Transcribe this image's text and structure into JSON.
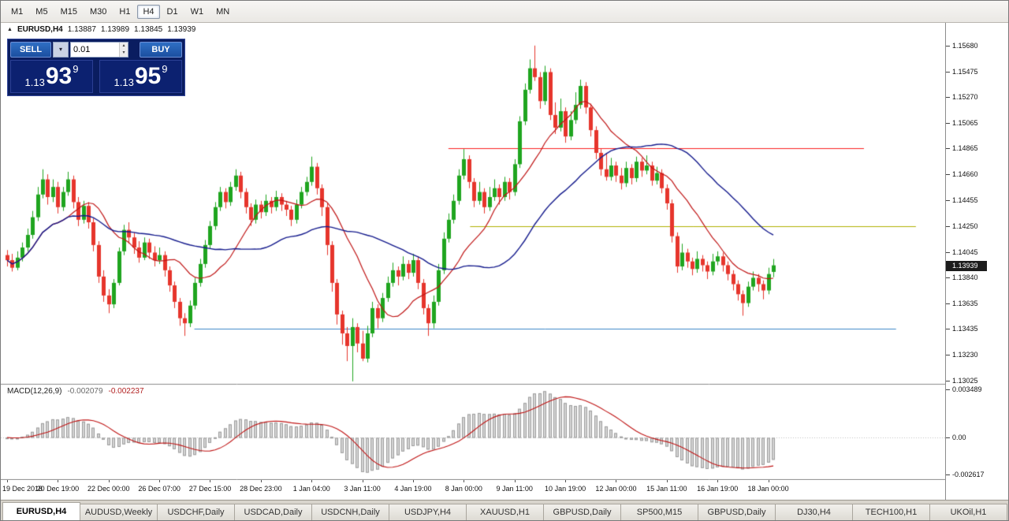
{
  "toolbar": {
    "timeframes": [
      {
        "label": "M1",
        "active": false
      },
      {
        "label": "M5",
        "active": false
      },
      {
        "label": "M15",
        "active": false
      },
      {
        "label": "M30",
        "active": false
      },
      {
        "label": "H1",
        "active": false
      },
      {
        "label": "H4",
        "active": true
      },
      {
        "label": "D1",
        "active": false
      },
      {
        "label": "W1",
        "active": false
      },
      {
        "label": "MN",
        "active": false
      }
    ]
  },
  "header": {
    "symbol": "EURUSD,H4",
    "open": "1.13887",
    "high": "1.13989",
    "low": "1.13845",
    "close": "1.13939"
  },
  "trade_panel": {
    "sell_label": "SELL",
    "buy_label": "BUY",
    "lot_size": "0.01",
    "sell_price": {
      "prefix": "1.13",
      "big": "93",
      "sup": "9"
    },
    "buy_price": {
      "prefix": "1.13",
      "big": "95",
      "sup": "9"
    }
  },
  "price_axis": {
    "labels": [
      "1.15680",
      "1.15475",
      "1.15270",
      "1.15065",
      "1.14865",
      "1.14660",
      "1.14455",
      "1.14250",
      "1.14045",
      "1.13840",
      "1.13635",
      "1.13435",
      "1.13230",
      "1.13025"
    ],
    "current_price": "1.13939"
  },
  "macd_panel": {
    "label": "MACD(12,26,9)",
    "value1": "-0.002079",
    "value2": "-0.002237",
    "scale_top": "0.003489",
    "scale_zero": "0.00",
    "scale_bottom": "-0.002617"
  },
  "time_axis": {
    "labels": [
      {
        "text": "19 Dec 2018",
        "index": 0
      },
      {
        "text": "20 Dec 19:00",
        "index": 10
      },
      {
        "text": "22 Dec 00:00",
        "index": 20
      },
      {
        "text": "26 Dec 07:00",
        "index": 30
      },
      {
        "text": "27 Dec 15:00",
        "index": 40
      },
      {
        "text": "28 Dec 23:00",
        "index": 50
      },
      {
        "text": "1 Jan 04:00",
        "index": 60
      },
      {
        "text": "3 Jan 11:00",
        "index": 70
      },
      {
        "text": "4 Jan 19:00",
        "index": 80
      },
      {
        "text": "8 Jan 00:00",
        "index": 90
      },
      {
        "text": "9 Jan 11:00",
        "index": 100
      },
      {
        "text": "10 Jan 19:00",
        "index": 110
      },
      {
        "text": "12 Jan 00:00",
        "index": 120
      },
      {
        "text": "15 Jan 11:00",
        "index": 130
      },
      {
        "text": "16 Jan 19:00",
        "index": 140
      },
      {
        "text": "18 Jan 00:00",
        "index": 150
      }
    ]
  },
  "tabs": [
    {
      "label": "EURUSD,H4",
      "active": true
    },
    {
      "label": "AUDUSD,Weekly",
      "active": false
    },
    {
      "label": "USDCHF,Daily",
      "active": false
    },
    {
      "label": "USDCAD,Daily",
      "active": false
    },
    {
      "label": "USDCNH,Daily",
      "active": false
    },
    {
      "label": "USDJPY,H4",
      "active": false
    },
    {
      "label": "XAUUSD,H1",
      "active": false
    },
    {
      "label": "GBPUSD,Daily",
      "active": false
    },
    {
      "label": "SP500,M15",
      "active": false
    },
    {
      "label": "GBPUSD,Daily",
      "active": false
    },
    {
      "label": "DJ30,H4",
      "active": false
    },
    {
      "label": "TECH100,H1",
      "active": false
    },
    {
      "label": "UKOil,H1",
      "active": false
    }
  ],
  "chart_data": {
    "type": "candlestick",
    "symbol": "EURUSD",
    "timeframe": "H4",
    "price_range": [
      1.13,
      1.1586
    ],
    "colors": {
      "bull": "#1FA51F",
      "bear": "#E6352C",
      "background": "#FFFFFF"
    },
    "overlays": {
      "ma_fast": {
        "type": "sma",
        "period": 13,
        "color": "#C01515"
      },
      "ma_slow": {
        "type": "sma",
        "period": 34,
        "color": "#151B8D"
      },
      "hlines": [
        {
          "price": 1.14865,
          "color": "#FB2020",
          "x1_frac": 0.474,
          "x2_frac": 0.914
        },
        {
          "price": 1.1425,
          "color": "#AFAF00",
          "x1_frac": 0.497,
          "x2_frac": 0.969
        },
        {
          "price": 1.13435,
          "color": "#3A86C8",
          "x1_frac": 0.205,
          "x2_frac": 0.948
        }
      ]
    },
    "indicator": {
      "type": "macd",
      "fast": 12,
      "slow": 26,
      "signal": 9,
      "histogram_fill": "#D6D6D6",
      "histogram_stroke": "#9C9C9C",
      "signal_color": "#C01515"
    },
    "candles": [
      [
        1.1402,
        1.1406,
        1.1393,
        1.1398
      ],
      [
        1.1398,
        1.1403,
        1.1389,
        1.1392
      ],
      [
        1.1392,
        1.1405,
        1.139,
        1.14
      ],
      [
        1.14,
        1.1412,
        1.1397,
        1.1408
      ],
      [
        1.1408,
        1.1423,
        1.1405,
        1.1418
      ],
      [
        1.1418,
        1.1437,
        1.1415,
        1.1432
      ],
      [
        1.1432,
        1.1456,
        1.1429,
        1.145
      ],
      [
        1.145,
        1.147,
        1.1447,
        1.1462
      ],
      [
        1.1462,
        1.1466,
        1.1442,
        1.1448
      ],
      [
        1.1448,
        1.1462,
        1.1444,
        1.1456
      ],
      [
        1.1456,
        1.146,
        1.1435,
        1.144
      ],
      [
        1.144,
        1.1456,
        1.1437,
        1.1452
      ],
      [
        1.1452,
        1.1468,
        1.1449,
        1.1462
      ],
      [
        1.1462,
        1.1465,
        1.1439,
        1.1444
      ],
      [
        1.1444,
        1.1448,
        1.1425,
        1.143
      ],
      [
        1.143,
        1.1445,
        1.1427,
        1.1441
      ],
      [
        1.1441,
        1.1444,
        1.1423,
        1.1428
      ],
      [
        1.1428,
        1.1431,
        1.1405,
        1.141
      ],
      [
        1.141,
        1.1413,
        1.138,
        1.1385
      ],
      [
        1.1385,
        1.139,
        1.1365,
        1.137
      ],
      [
        1.137,
        1.1375,
        1.1356,
        1.1363
      ],
      [
        1.1363,
        1.1383,
        1.136,
        1.138
      ],
      [
        1.138,
        1.1408,
        1.1378,
        1.1405
      ],
      [
        1.1405,
        1.1426,
        1.1402,
        1.1422
      ],
      [
        1.1422,
        1.1428,
        1.1411,
        1.1416
      ],
      [
        1.1416,
        1.142,
        1.1403,
        1.1408
      ],
      [
        1.1408,
        1.1413,
        1.1396,
        1.14
      ],
      [
        1.14,
        1.1416,
        1.1398,
        1.1412
      ],
      [
        1.1412,
        1.1415,
        1.1399,
        1.1404
      ],
      [
        1.1404,
        1.1409,
        1.1393,
        1.1398
      ],
      [
        1.1398,
        1.1408,
        1.1395,
        1.1402
      ],
      [
        1.1402,
        1.1405,
        1.1385,
        1.139
      ],
      [
        1.139,
        1.1393,
        1.1373,
        1.1378
      ],
      [
        1.1378,
        1.1381,
        1.136,
        1.1365
      ],
      [
        1.1365,
        1.1368,
        1.1346,
        1.1352
      ],
      [
        1.1352,
        1.1356,
        1.1338,
        1.1348
      ],
      [
        1.1348,
        1.1366,
        1.1345,
        1.1362
      ],
      [
        1.1362,
        1.1384,
        1.1359,
        1.138
      ],
      [
        1.138,
        1.1399,
        1.1377,
        1.1395
      ],
      [
        1.1395,
        1.1414,
        1.1392,
        1.141
      ],
      [
        1.141,
        1.1429,
        1.1407,
        1.1425
      ],
      [
        1.1425,
        1.1444,
        1.1422,
        1.144
      ],
      [
        1.144,
        1.1456,
        1.1437,
        1.1452
      ],
      [
        1.1452,
        1.1455,
        1.1439,
        1.1444
      ],
      [
        1.1444,
        1.146,
        1.1441,
        1.1456
      ],
      [
        1.1456,
        1.147,
        1.1453,
        1.1465
      ],
      [
        1.1465,
        1.1468,
        1.1447,
        1.1452
      ],
      [
        1.1452,
        1.1455,
        1.1435,
        1.144
      ],
      [
        1.144,
        1.1443,
        1.1425,
        1.143
      ],
      [
        1.143,
        1.1446,
        1.1427,
        1.1442
      ],
      [
        1.1442,
        1.1445,
        1.1431,
        1.1436
      ],
      [
        1.1436,
        1.145,
        1.1433,
        1.1445
      ],
      [
        1.1445,
        1.1448,
        1.1435,
        1.144
      ],
      [
        1.144,
        1.1453,
        1.1437,
        1.1448
      ],
      [
        1.1448,
        1.1451,
        1.1437,
        1.1442
      ],
      [
        1.1442,
        1.1445,
        1.1433,
        1.1438
      ],
      [
        1.1438,
        1.1441,
        1.1425,
        1.143
      ],
      [
        1.143,
        1.1446,
        1.1427,
        1.1442
      ],
      [
        1.1442,
        1.1456,
        1.1439,
        1.1452
      ],
      [
        1.1452,
        1.1464,
        1.1449,
        1.146
      ],
      [
        1.146,
        1.148,
        1.1457,
        1.1472
      ],
      [
        1.1472,
        1.1475,
        1.145,
        1.1455
      ],
      [
        1.1455,
        1.1458,
        1.1433,
        1.144
      ],
      [
        1.144,
        1.1443,
        1.1402,
        1.141
      ],
      [
        1.141,
        1.1413,
        1.1373,
        1.138
      ],
      [
        1.138,
        1.1383,
        1.1347,
        1.1355
      ],
      [
        1.1355,
        1.1358,
        1.1331,
        1.134
      ],
      [
        1.134,
        1.1345,
        1.1318,
        1.133
      ],
      [
        1.133,
        1.1352,
        1.1302,
        1.1345
      ],
      [
        1.1345,
        1.1348,
        1.1325,
        1.1332
      ],
      [
        1.1332,
        1.1342,
        1.1318,
        1.132
      ],
      [
        1.132,
        1.1346,
        1.1317,
        1.134
      ],
      [
        1.134,
        1.1365,
        1.1337,
        1.136
      ],
      [
        1.136,
        1.1363,
        1.1344,
        1.1352
      ],
      [
        1.1352,
        1.1372,
        1.1349,
        1.1368
      ],
      [
        1.1368,
        1.1385,
        1.1365,
        1.138
      ],
      [
        1.138,
        1.1396,
        1.1377,
        1.139
      ],
      [
        1.139,
        1.1393,
        1.1378,
        1.1385
      ],
      [
        1.1385,
        1.1401,
        1.1382,
        1.1395
      ],
      [
        1.1395,
        1.1398,
        1.1383,
        1.1388
      ],
      [
        1.1388,
        1.1403,
        1.1385,
        1.1398
      ],
      [
        1.1398,
        1.1401,
        1.1375,
        1.138
      ],
      [
        1.138,
        1.1383,
        1.1355,
        1.136
      ],
      [
        1.136,
        1.1363,
        1.1338,
        1.1348
      ],
      [
        1.1348,
        1.137,
        1.1344,
        1.1365
      ],
      [
        1.1365,
        1.1395,
        1.1362,
        1.139
      ],
      [
        1.139,
        1.142,
        1.1387,
        1.1415
      ],
      [
        1.1415,
        1.1435,
        1.1412,
        1.143
      ],
      [
        1.143,
        1.145,
        1.1427,
        1.1445
      ],
      [
        1.1445,
        1.147,
        1.1442,
        1.1465
      ],
      [
        1.1465,
        1.1486,
        1.1462,
        1.1478
      ],
      [
        1.1478,
        1.1481,
        1.1455,
        1.146
      ],
      [
        1.146,
        1.1463,
        1.144,
        1.1445
      ],
      [
        1.1445,
        1.146,
        1.1442,
        1.1452
      ],
      [
        1.1452,
        1.1455,
        1.1435,
        1.144
      ],
      [
        1.144,
        1.1456,
        1.1437,
        1.1448
      ],
      [
        1.1448,
        1.1462,
        1.1445,
        1.1455
      ],
      [
        1.1455,
        1.1458,
        1.1442,
        1.1448
      ],
      [
        1.1448,
        1.1464,
        1.1445,
        1.146
      ],
      [
        1.146,
        1.1463,
        1.1446,
        1.1452
      ],
      [
        1.1452,
        1.1478,
        1.1449,
        1.1474
      ],
      [
        1.1474,
        1.1512,
        1.1471,
        1.1508
      ],
      [
        1.1508,
        1.1538,
        1.1505,
        1.1533
      ],
      [
        1.1533,
        1.1557,
        1.153,
        1.155
      ],
      [
        1.155,
        1.1568,
        1.154,
        1.1543
      ],
      [
        1.1543,
        1.1547,
        1.1518,
        1.1524
      ],
      [
        1.1524,
        1.1552,
        1.1521,
        1.1547
      ],
      [
        1.1547,
        1.155,
        1.1509,
        1.1513
      ],
      [
        1.1513,
        1.1523,
        1.1498,
        1.1503
      ],
      [
        1.1503,
        1.1526,
        1.15,
        1.1516
      ],
      [
        1.1516,
        1.1519,
        1.1491,
        1.1496
      ],
      [
        1.1496,
        1.1516,
        1.1493,
        1.1509
      ],
      [
        1.1509,
        1.1531,
        1.1506,
        1.1521
      ],
      [
        1.1521,
        1.1541,
        1.1518,
        1.1536
      ],
      [
        1.1536,
        1.1539,
        1.1514,
        1.1519
      ],
      [
        1.1519,
        1.1522,
        1.1496,
        1.1501
      ],
      [
        1.1501,
        1.1504,
        1.1478,
        1.1483
      ],
      [
        1.1483,
        1.1486,
        1.1465,
        1.147
      ],
      [
        1.147,
        1.1483,
        1.1461,
        1.1464
      ],
      [
        1.1464,
        1.1479,
        1.1461,
        1.1473
      ],
      [
        1.1473,
        1.1476,
        1.146,
        1.1465
      ],
      [
        1.1465,
        1.1471,
        1.1454,
        1.1459
      ],
      [
        1.1459,
        1.1476,
        1.1456,
        1.1471
      ],
      [
        1.1471,
        1.1474,
        1.1458,
        1.1463
      ],
      [
        1.1463,
        1.148,
        1.146,
        1.1476
      ],
      [
        1.1476,
        1.1479,
        1.1464,
        1.1469
      ],
      [
        1.1469,
        1.1481,
        1.1466,
        1.1473
      ],
      [
        1.1473,
        1.1476,
        1.1457,
        1.1461
      ],
      [
        1.1461,
        1.1472,
        1.1458,
        1.1467
      ],
      [
        1.1467,
        1.147,
        1.1451,
        1.1455
      ],
      [
        1.1455,
        1.1458,
        1.1438,
        1.1443
      ],
      [
        1.1443,
        1.1446,
        1.1412,
        1.1417
      ],
      [
        1.1417,
        1.142,
        1.1388,
        1.1393
      ],
      [
        1.1393,
        1.1411,
        1.139,
        1.1404
      ],
      [
        1.1404,
        1.1407,
        1.1392,
        1.1397
      ],
      [
        1.1397,
        1.14,
        1.1386,
        1.1391
      ],
      [
        1.1391,
        1.1405,
        1.1388,
        1.1399
      ],
      [
        1.1399,
        1.1402,
        1.1389,
        1.1394
      ],
      [
        1.1394,
        1.1397,
        1.1383,
        1.1389
      ],
      [
        1.1389,
        1.1403,
        1.1386,
        1.1397
      ],
      [
        1.1397,
        1.1405,
        1.1394,
        1.1401
      ],
      [
        1.1401,
        1.1404,
        1.1389,
        1.1394
      ],
      [
        1.1394,
        1.1397,
        1.1382,
        1.1387
      ],
      [
        1.1387,
        1.139,
        1.1374,
        1.1379
      ],
      [
        1.1379,
        1.1382,
        1.1366,
        1.1371
      ],
      [
        1.1371,
        1.1374,
        1.1354,
        1.1364
      ],
      [
        1.1364,
        1.1381,
        1.1361,
        1.1377
      ],
      [
        1.1377,
        1.1389,
        1.1374,
        1.1384
      ],
      [
        1.1384,
        1.1387,
        1.1373,
        1.1379
      ],
      [
        1.1379,
        1.1382,
        1.1367,
        1.1374
      ],
      [
        1.1374,
        1.1392,
        1.1371,
        1.1387
      ],
      [
        1.13887,
        1.13989,
        1.13845,
        1.13939
      ]
    ]
  }
}
